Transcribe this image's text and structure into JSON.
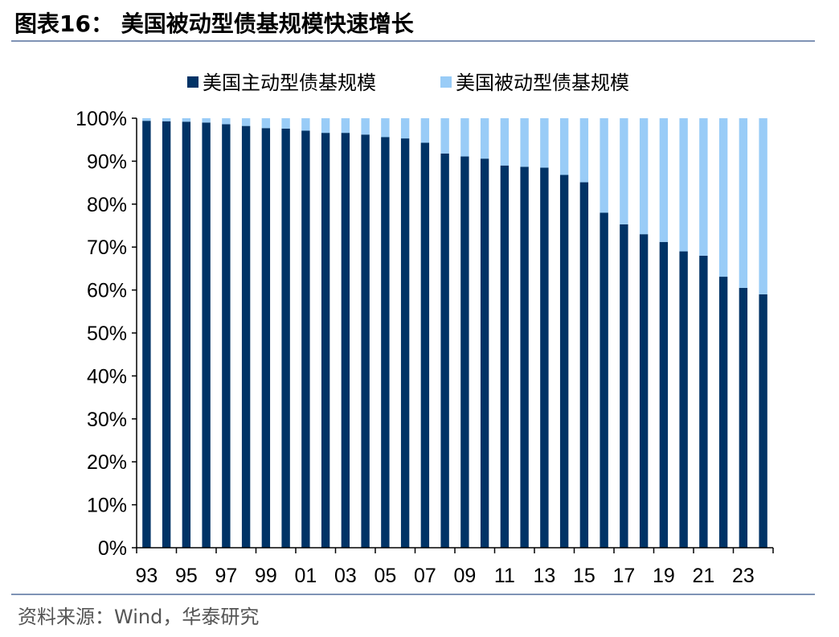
{
  "header": {
    "title": "图表16：  美国被动型债基规模快速增长"
  },
  "footer": {
    "source": "资料来源：Wind，华泰研究"
  },
  "colors": {
    "active": "#003366",
    "passive": "#99ccf7",
    "rule": "#7f93b5"
  },
  "chart_data": {
    "type": "bar",
    "stacked": true,
    "percent": true,
    "title": "",
    "xlabel": "",
    "ylabel": "",
    "ylim": [
      0,
      100
    ],
    "y_ticks": [
      "0%",
      "10%",
      "20%",
      "30%",
      "40%",
      "50%",
      "60%",
      "70%",
      "80%",
      "90%",
      "100%"
    ],
    "x_tick_labels": [
      "93",
      "95",
      "97",
      "99",
      "01",
      "03",
      "05",
      "07",
      "09",
      "11",
      "13",
      "15",
      "17",
      "19",
      "21",
      "23"
    ],
    "categories": [
      "1993",
      "1994",
      "1995",
      "1996",
      "1997",
      "1998",
      "1999",
      "2000",
      "2001",
      "2002",
      "2003",
      "2004",
      "2005",
      "2006",
      "2007",
      "2008",
      "2009",
      "2010",
      "2011",
      "2012",
      "2013",
      "2014",
      "2015",
      "2016",
      "2017",
      "2018",
      "2019",
      "2020",
      "2021",
      "2022",
      "2023",
      "2024"
    ],
    "legend_position": "top",
    "series": [
      {
        "name": "美国主动型债基规模",
        "color": "#003366",
        "values": [
          99.4,
          99.3,
          99.2,
          99.0,
          98.6,
          98.2,
          97.7,
          97.6,
          97.1,
          96.6,
          96.6,
          96.2,
          95.6,
          95.3,
          94.3,
          91.8,
          91.1,
          90.6,
          89.0,
          88.7,
          88.5,
          86.8,
          85.1,
          78.0,
          75.3,
          73.0,
          71.2,
          69.0,
          68.0,
          63.1,
          60.5,
          59.0
        ]
      },
      {
        "name": "美国被动型债基规模",
        "color": "#99ccf7",
        "values": [
          0.6,
          0.7,
          0.8,
          1.0,
          1.4,
          1.8,
          2.3,
          2.4,
          2.9,
          3.4,
          3.4,
          3.8,
          4.4,
          4.7,
          5.7,
          8.2,
          8.9,
          9.4,
          11.0,
          11.3,
          11.5,
          13.2,
          14.9,
          22.0,
          24.7,
          27.0,
          28.8,
          31.0,
          32.0,
          36.9,
          39.5,
          41.0
        ]
      }
    ]
  }
}
